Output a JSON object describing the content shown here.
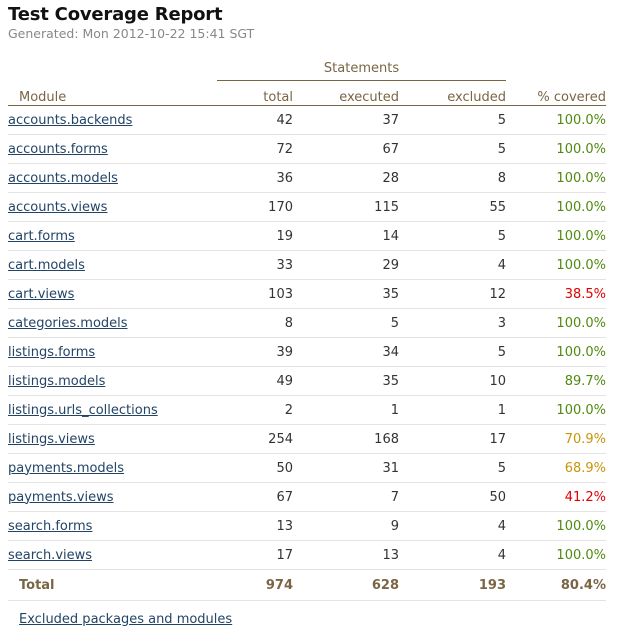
{
  "report": {
    "title": "Test Coverage Report",
    "generated": "Generated: Mon 2012-10-22 15:41 SGT"
  },
  "columns": {
    "group_label": "Statements",
    "module": "Module",
    "total": "total",
    "executed": "executed",
    "excluded": "excluded",
    "covered": "% covered"
  },
  "rows": [
    {
      "module": "accounts.backends",
      "total": "42",
      "executed": "37",
      "excluded": "5",
      "covered": "100.0%",
      "status": "high"
    },
    {
      "module": "accounts.forms",
      "total": "72",
      "executed": "67",
      "excluded": "5",
      "covered": "100.0%",
      "status": "high"
    },
    {
      "module": "accounts.models",
      "total": "36",
      "executed": "28",
      "excluded": "8",
      "covered": "100.0%",
      "status": "high"
    },
    {
      "module": "accounts.views",
      "total": "170",
      "executed": "115",
      "excluded": "55",
      "covered": "100.0%",
      "status": "high"
    },
    {
      "module": "cart.forms",
      "total": "19",
      "executed": "14",
      "excluded": "5",
      "covered": "100.0%",
      "status": "high"
    },
    {
      "module": "cart.models",
      "total": "33",
      "executed": "29",
      "excluded": "4",
      "covered": "100.0%",
      "status": "high"
    },
    {
      "module": "cart.views",
      "total": "103",
      "executed": "35",
      "excluded": "12",
      "covered": "38.5%",
      "status": "low"
    },
    {
      "module": "categories.models",
      "total": "8",
      "executed": "5",
      "excluded": "3",
      "covered": "100.0%",
      "status": "high"
    },
    {
      "module": "listings.forms",
      "total": "39",
      "executed": "34",
      "excluded": "5",
      "covered": "100.0%",
      "status": "high"
    },
    {
      "module": "listings.models",
      "total": "49",
      "executed": "35",
      "excluded": "10",
      "covered": "89.7%",
      "status": "high"
    },
    {
      "module": "listings.urls_collections",
      "total": "2",
      "executed": "1",
      "excluded": "1",
      "covered": "100.0%",
      "status": "high"
    },
    {
      "module": "listings.views",
      "total": "254",
      "executed": "168",
      "excluded": "17",
      "covered": "70.9%",
      "status": "medium"
    },
    {
      "module": "payments.models",
      "total": "50",
      "executed": "31",
      "excluded": "5",
      "covered": "68.9%",
      "status": "medium"
    },
    {
      "module": "payments.views",
      "total": "67",
      "executed": "7",
      "excluded": "50",
      "covered": "41.2%",
      "status": "low"
    },
    {
      "module": "search.forms",
      "total": "13",
      "executed": "9",
      "excluded": "4",
      "covered": "100.0%",
      "status": "high"
    },
    {
      "module": "search.views",
      "total": "17",
      "executed": "13",
      "excluded": "4",
      "covered": "100.0%",
      "status": "high"
    }
  ],
  "totals": {
    "label": "Total",
    "total": "974",
    "executed": "628",
    "excluded": "193",
    "covered": "80.4%"
  },
  "footer": {
    "excluded_link": "Excluded packages and modules"
  },
  "colors": {
    "high": "#4f8a10",
    "medium": "#c8940a",
    "low": "#e00000",
    "header": "#7a6545",
    "link": "#224466"
  }
}
